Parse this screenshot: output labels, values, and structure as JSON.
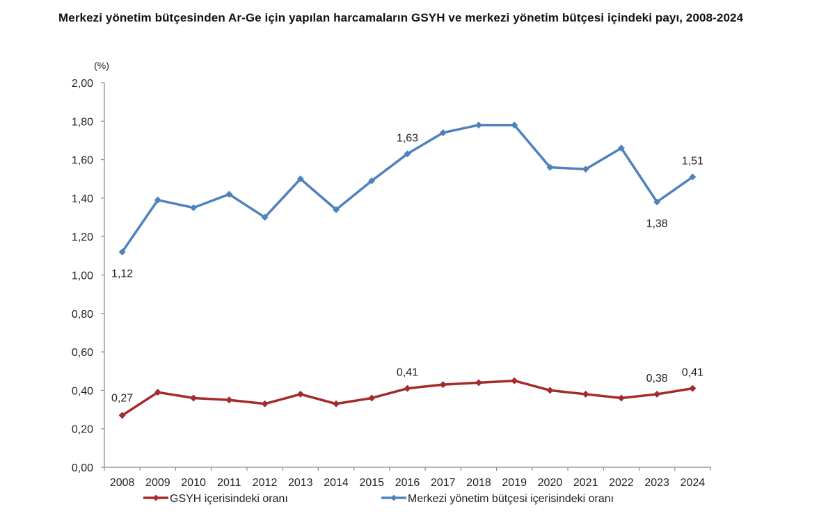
{
  "chart_data": {
    "type": "line",
    "title": "Merkezi yönetim bütçesinden Ar-Ge için yapılan harcamaların GSYH ve merkezi yönetim bütçesi içindeki payı, 2008-2024",
    "xlabel": "",
    "ylabel": "(%)",
    "ylim": [
      0,
      2.0
    ],
    "yticks": [
      0,
      0.2,
      0.4,
      0.6,
      0.8,
      1.0,
      1.2,
      1.4,
      1.6,
      1.8,
      2.0
    ],
    "ytick_labels": [
      "0,00",
      "0,20",
      "0,40",
      "0,60",
      "0,80",
      "1,00",
      "1,20",
      "1,40",
      "1,60",
      "1,80",
      "2,00"
    ],
    "grid": false,
    "legend_position": "bottom",
    "categories": [
      "2008",
      "2009",
      "2010",
      "2011",
      "2012",
      "2013",
      "2014",
      "2015",
      "2016",
      "2017",
      "2018",
      "2019",
      "2020",
      "2021",
      "2022",
      "2023",
      "2024"
    ],
    "series": [
      {
        "name": "GSYH içerisindeki oranı",
        "color": "#a52a2a",
        "values": [
          0.27,
          0.39,
          0.36,
          0.35,
          0.33,
          0.38,
          0.33,
          0.36,
          0.41,
          0.43,
          0.44,
          0.45,
          0.4,
          0.38,
          0.36,
          0.38,
          0.41
        ],
        "labels": [
          {
            "index": 0,
            "text": "0,27",
            "position": "above"
          },
          {
            "index": 8,
            "text": "0,41",
            "position": "above"
          },
          {
            "index": 15,
            "text": "0,38",
            "position": "above"
          },
          {
            "index": 16,
            "text": "0,41",
            "position": "above"
          }
        ]
      },
      {
        "name": "Merkezi yönetim bütçesi içerisindeki oranı",
        "color": "#4f81bd",
        "values": [
          1.12,
          1.39,
          1.35,
          1.42,
          1.3,
          1.5,
          1.34,
          1.49,
          1.63,
          1.74,
          1.78,
          1.78,
          1.56,
          1.55,
          1.66,
          1.38,
          1.51
        ],
        "labels": [
          {
            "index": 0,
            "text": "1,12",
            "position": "below"
          },
          {
            "index": 8,
            "text": "1,63",
            "position": "above"
          },
          {
            "index": 15,
            "text": "1,38",
            "position": "below"
          },
          {
            "index": 16,
            "text": "1,51",
            "position": "above"
          }
        ]
      }
    ]
  }
}
